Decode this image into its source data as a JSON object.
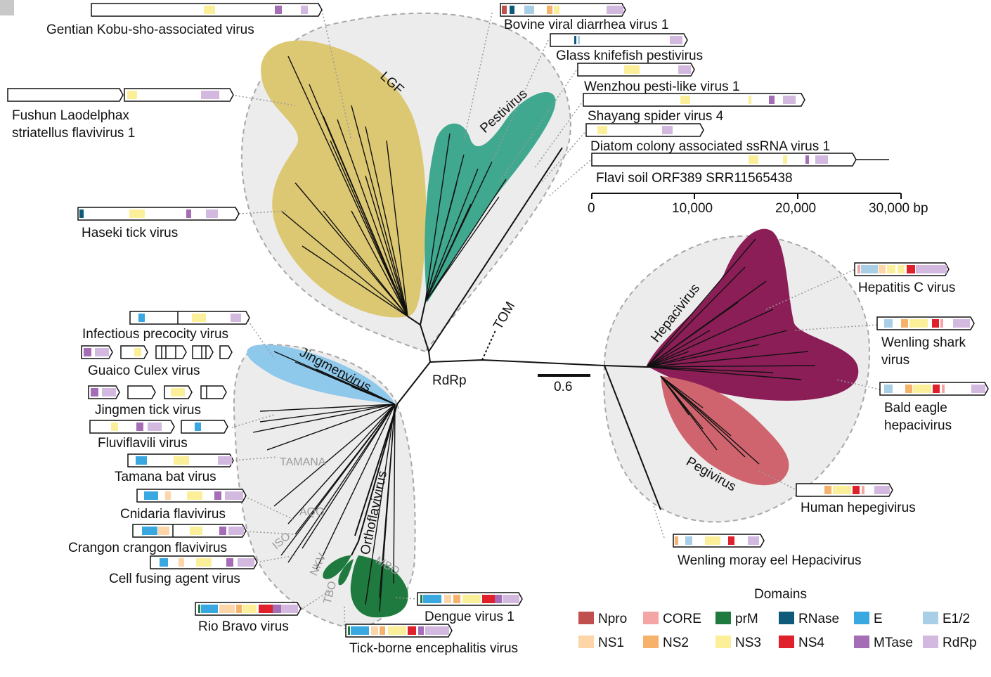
{
  "domains_title": "Domains",
  "domain_legend": [
    {
      "name": "Npro",
      "color": "#c0504d"
    },
    {
      "name": "CORE",
      "color": "#f4a6a6"
    },
    {
      "name": "prM",
      "color": "#1e7a3e"
    },
    {
      "name": "RNase",
      "color": "#0f5a7a"
    },
    {
      "name": "E",
      "color": "#3aa8e0"
    },
    {
      "name": "E1/2",
      "color": "#a9cfe6"
    },
    {
      "name": "NS1",
      "color": "#fcd5a9"
    },
    {
      "name": "NS2",
      "color": "#f6b26b"
    },
    {
      "name": "NS3",
      "color": "#fbef9a"
    },
    {
      "name": "NS4",
      "color": "#e0202a"
    },
    {
      "name": "MTase",
      "color": "#a56db5"
    },
    {
      "name": "RdRp",
      "color": "#d3b8e0"
    }
  ],
  "clades": {
    "lgf": "LGF",
    "pestivirus": "Pestivirus",
    "hepacivirus": "Hepacivirus",
    "pegivirus": "Pegivirus",
    "jingmenvirus": "Jingmenvirus",
    "orthoflavivirus": "Orthoflavivirus"
  },
  "subclades": {
    "tamana": "TAMANA",
    "aqo": "AQO",
    "iso": "ISO",
    "nkv": "NKV",
    "tbo": "TBO",
    "mbo": "MBO"
  },
  "tree_labels": {
    "rdrp": "RdRp",
    "tom": "TOM",
    "scale": "0.6"
  },
  "axis": {
    "ticks": [
      "0",
      "10,000",
      "20,000",
      "30,000 bp"
    ]
  },
  "viruses": {
    "gentian": "Gentian Kobu-sho-associated virus",
    "fushun_1": "Fushun Laodelphax",
    "fushun_2": "striatellus flavivirus 1",
    "haseki": "Haseki tick virus",
    "bvdv": "Bovine viral diarrhea virus 1",
    "glass": "Glass knifefish pestivirus",
    "wenzhou": "Wenzhou pesti-like virus 1",
    "shayang": "Shayang spider virus 4",
    "diatom": "Diatom colony associated ssRNA virus 1",
    "flavi_soil": "Flavi soil ORF389 SRR11565438",
    "hcv": "Hepatitis C virus",
    "shark_1": "Wenling shark",
    "shark_2": "virus",
    "eagle_1": "Bald eagle",
    "eagle_2": "hepacivirus",
    "hepegivirus": "Human hepegivirus",
    "moray": "Wenling moray eel Hepacivirus",
    "precocity": "Infectious precocity virus",
    "guaico": "Guaico Culex virus",
    "jingmen": "Jingmen tick virus",
    "fluviflavili": "Fluviflavili virus",
    "tamana_bat": "Tamana bat virus",
    "cnidaria": "Cnidaria flavivirus",
    "crangon": "Crangon crangon flavivirus",
    "cfav": "Cell fusing agent virus",
    "rio_bravo": "Rio Bravo virus",
    "dengue": "Dengue virus 1",
    "tbev": "Tick-borne encephalitis virus"
  }
}
